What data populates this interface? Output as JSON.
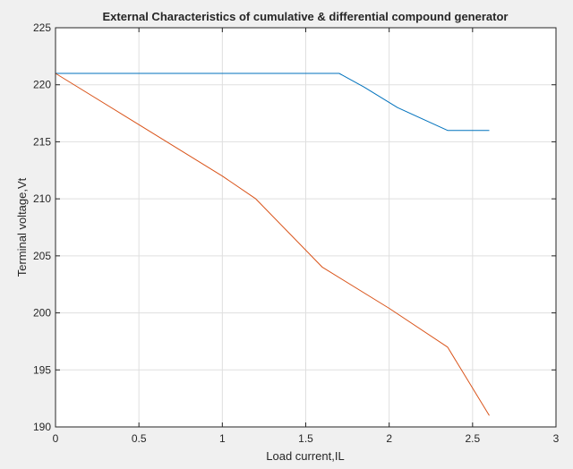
{
  "chart_data": {
    "type": "line",
    "title": "External Characteristics of cumulative & differential compound generator",
    "xlabel": "Load current,IL",
    "ylabel": "Terminal voltage,Vt",
    "xlim": [
      0,
      3
    ],
    "ylim": [
      190,
      225
    ],
    "xticks": [
      0,
      0.5,
      1,
      1.5,
      2,
      2.5,
      3
    ],
    "xtick_labels": [
      "0",
      "0.5",
      "1",
      "1.5",
      "2",
      "2.5",
      "3"
    ],
    "yticks": [
      190,
      195,
      200,
      205,
      210,
      215,
      220,
      225
    ],
    "ytick_labels": [
      "190",
      "195",
      "200",
      "205",
      "210",
      "215",
      "220",
      "225"
    ],
    "grid": true,
    "series": [
      {
        "color": "#0072bd",
        "x": [
          0,
          1.7,
          1.85,
          2.05,
          2.35,
          2.6
        ],
        "y": [
          221,
          221,
          219.8,
          218,
          216,
          216
        ]
      },
      {
        "color": "#d95319",
        "x": [
          0,
          0.5,
          1.0,
          1.2,
          1.6,
          2.0,
          2.35,
          2.6
        ],
        "y": [
          221,
          216.5,
          212,
          210,
          204,
          200.4,
          197,
          191
        ]
      }
    ]
  }
}
